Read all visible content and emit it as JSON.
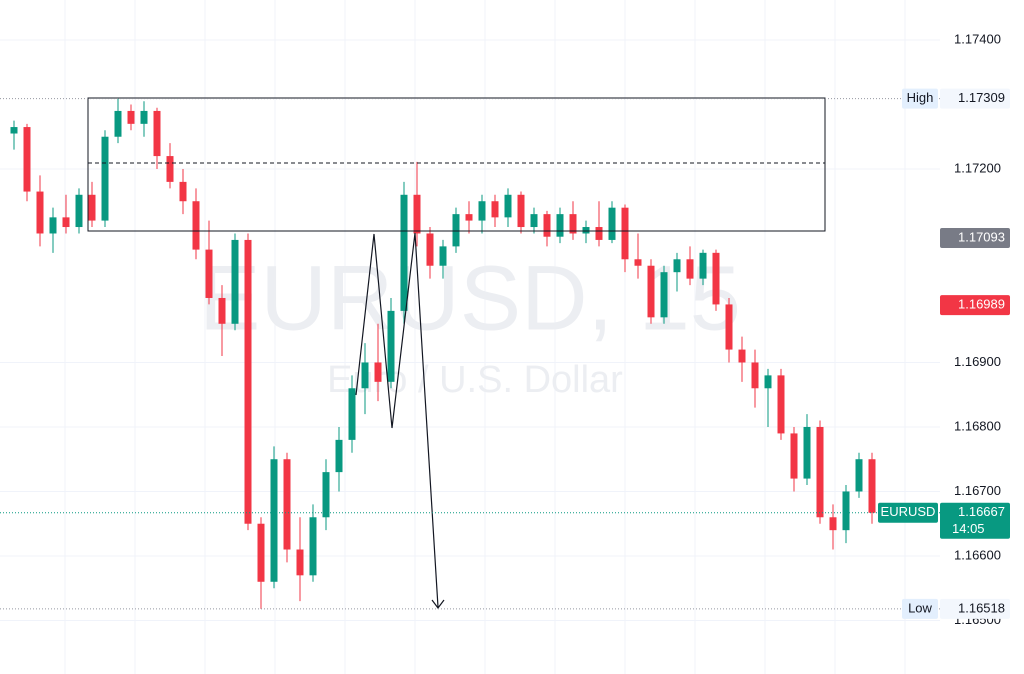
{
  "chart_data": {
    "type": "candlestick",
    "watermark_title": "EURUSD, 15",
    "watermark_subtitle": "Euro / U.S. Dollar",
    "ylim": [
      1.16417,
      1.17462
    ],
    "yticks": [
      {
        "value": 1.174,
        "label": "1.17400"
      },
      {
        "value": 1.172,
        "label": "1.17200"
      },
      {
        "value": 1.169,
        "label": "1.16900"
      },
      {
        "value": 1.168,
        "label": "1.16800"
      },
      {
        "value": 1.167,
        "label": "1.16700"
      },
      {
        "value": 1.166,
        "label": "1.16600"
      },
      {
        "value": 1.165,
        "label": "1.16500"
      }
    ],
    "grid": true,
    "up_color": "#089981",
    "down_color": "#f23645",
    "open": [
      1.17255,
      1.17265,
      1.17165,
      1.171,
      1.17125,
      1.1711,
      1.1716,
      1.1712,
      1.1725,
      1.1729,
      1.1727,
      1.1729,
      1.1722,
      1.1718,
      1.1715,
      1.17075,
      1.17,
      1.1696,
      1.1709,
      1.1665,
      1.1656,
      1.1675,
      1.1661,
      1.1657,
      1.1666,
      1.1673,
      1.1678,
      1.1686,
      1.169,
      1.1687,
      1.1698,
      1.1716,
      1.171,
      1.1705,
      1.1708,
      1.1713,
      1.1712,
      1.1715,
      1.17125,
      1.1716,
      1.1711,
      1.1713,
      1.17095,
      1.1713,
      1.171,
      1.1711,
      1.1709,
      1.1714,
      1.1706,
      1.1705,
      1.1697,
      1.1704,
      1.1706,
      1.1703,
      1.1707,
      1.1699,
      1.1692,
      1.169,
      1.1686,
      1.1688,
      1.1679,
      1.1672,
      1.168,
      1.1666,
      1.1664,
      1.167,
      1.1675
    ],
    "high": [
      1.17275,
      1.1727,
      1.1719,
      1.1714,
      1.1716,
      1.1717,
      1.1718,
      1.1726,
      1.17309,
      1.173,
      1.17305,
      1.17295,
      1.1724,
      1.172,
      1.1717,
      1.1712,
      1.1702,
      1.171,
      1.171,
      1.1666,
      1.1677,
      1.1676,
      1.1666,
      1.1668,
      1.1675,
      1.168,
      1.1688,
      1.1693,
      1.1696,
      1.17,
      1.1718,
      1.17211,
      1.1711,
      1.1709,
      1.1714,
      1.1715,
      1.1716,
      1.1716,
      1.1717,
      1.17165,
      1.1714,
      1.17135,
      1.1714,
      1.1715,
      1.1712,
      1.1715,
      1.1715,
      1.17145,
      1.171,
      1.1706,
      1.1705,
      1.1707,
      1.1708,
      1.17075,
      1.17075,
      1.17,
      1.1694,
      1.1692,
      1.1689,
      1.1689,
      1.168,
      1.1682,
      1.1681,
      1.1668,
      1.1671,
      1.1676,
      1.1676
    ],
    "low": [
      1.1723,
      1.1715,
      1.1708,
      1.1707,
      1.171,
      1.171,
      1.1711,
      1.1711,
      1.1724,
      1.1726,
      1.1725,
      1.172,
      1.1717,
      1.1713,
      1.1706,
      1.1699,
      1.1691,
      1.1695,
      1.1664,
      1.16518,
      1.1655,
      1.1659,
      1.1653,
      1.1656,
      1.1664,
      1.167,
      1.1676,
      1.1682,
      1.1684,
      1.1686,
      1.1696,
      1.1708,
      1.1703,
      1.1703,
      1.1707,
      1.171,
      1.171,
      1.1711,
      1.1711,
      1.171,
      1.171,
      1.1708,
      1.17085,
      1.1709,
      1.17085,
      1.1708,
      1.17085,
      1.1704,
      1.1703,
      1.1696,
      1.1696,
      1.1701,
      1.1702,
      1.1702,
      1.1698,
      1.169,
      1.1687,
      1.1683,
      1.168,
      1.1678,
      1.167,
      1.1671,
      1.1665,
      1.1661,
      1.1662,
      1.1669,
      1.1665
    ],
    "close": [
      1.17265,
      1.17165,
      1.171,
      1.17125,
      1.1711,
      1.1716,
      1.1712,
      1.1725,
      1.1729,
      1.1727,
      1.1729,
      1.1722,
      1.1718,
      1.1715,
      1.17075,
      1.17,
      1.1696,
      1.1709,
      1.1665,
      1.1656,
      1.1675,
      1.1661,
      1.1657,
      1.1666,
      1.1673,
      1.1678,
      1.1686,
      1.169,
      1.1687,
      1.1698,
      1.1716,
      1.171,
      1.1705,
      1.1708,
      1.1713,
      1.1712,
      1.1715,
      1.17125,
      1.1716,
      1.1711,
      1.1713,
      1.17095,
      1.1713,
      1.171,
      1.1711,
      1.1709,
      1.1714,
      1.1706,
      1.1705,
      1.1697,
      1.1704,
      1.1706,
      1.1703,
      1.1707,
      1.1699,
      1.1692,
      1.169,
      1.1686,
      1.1688,
      1.1679,
      1.1672,
      1.168,
      1.1666,
      1.1664,
      1.167,
      1.1675,
      1.16667
    ],
    "price_tags": [
      {
        "label": "High",
        "value": 1.17309,
        "color": "#e3effd"
      },
      {
        "value": 1.17093,
        "color": "#787b86"
      },
      {
        "value": 1.16989,
        "color": "#f23645"
      },
      {
        "label": "EURUSD",
        "value": 1.16667,
        "countdown": "14:05",
        "color": "#089981"
      },
      {
        "label": "Low",
        "value": 1.16518,
        "color": "#e3effd"
      }
    ]
  }
}
